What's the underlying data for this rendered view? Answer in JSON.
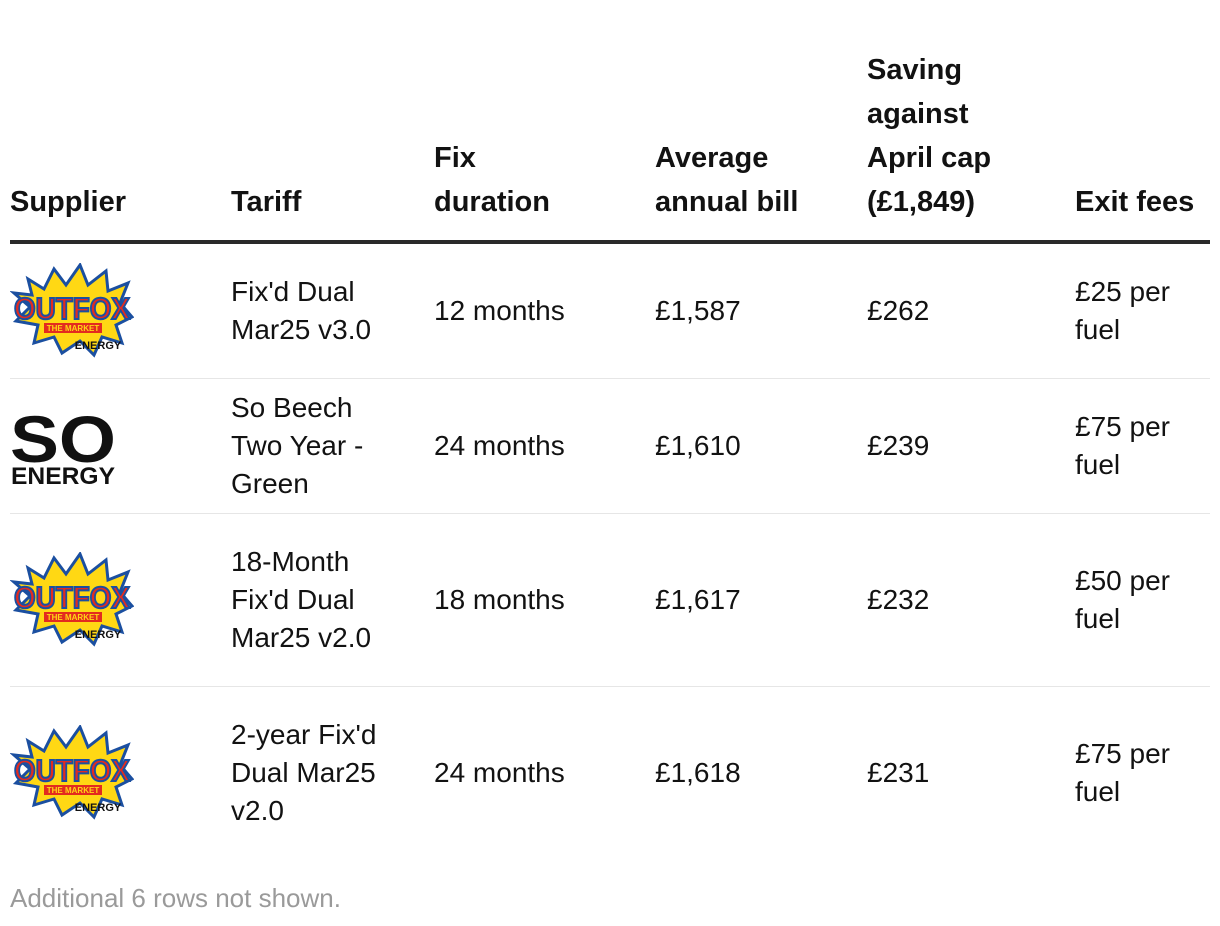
{
  "table": {
    "headers": {
      "supplier": "Supplier",
      "tariff": "Tariff",
      "fix_duration": "Fix duration",
      "average_annual_bill": "Average annual bill",
      "saving": "Saving against April cap (£1,849)",
      "exit_fees": "Exit fees"
    },
    "rows": [
      {
        "supplier_logo": {
          "name": "outfox-the-market-logo",
          "main": "OUTFOX",
          "band": "THE MARKET",
          "sub": "ENERGY"
        },
        "tariff": "Fix'd Dual Mar25 v3.0",
        "fix_duration": "12 months",
        "average_annual_bill": "£1,587",
        "saving": "£262",
        "exit_fees": "£25 per fuel"
      },
      {
        "supplier_logo": {
          "name": "so-energy-logo",
          "main": "SO",
          "sub": "ENERGY"
        },
        "tariff": "So Beech Two Year - Green",
        "fix_duration": "24 months",
        "average_annual_bill": "£1,610",
        "saving": "£239",
        "exit_fees": "£75 per fuel"
      },
      {
        "supplier_logo": {
          "name": "outfox-the-market-logo",
          "main": "OUTFOX",
          "band": "THE MARKET",
          "sub": "ENERGY"
        },
        "tariff": "18-Month Fix'd Dual Mar25 v2.0",
        "fix_duration": "18 months",
        "average_annual_bill": "£1,617",
        "saving": "£232",
        "exit_fees": "£50 per fuel"
      },
      {
        "supplier_logo": {
          "name": "outfox-the-market-logo",
          "main": "OUTFOX",
          "band": "THE MARKET",
          "sub": "ENERGY"
        },
        "tariff": "2-year Fix'd Dual Mar25 v2.0",
        "fix_duration": "24 months",
        "average_annual_bill": "£1,618",
        "saving": "£231",
        "exit_fees": "£75 per fuel"
      }
    ]
  },
  "footer_note": "Additional 6 rows not shown.",
  "colors": {
    "outfox_red": "#e32b1f",
    "outfox_yellow": "#ffd814",
    "outfox_blue": "#1b4fa0",
    "rule": "#2a2a2a",
    "note": "#9a9a9a"
  }
}
